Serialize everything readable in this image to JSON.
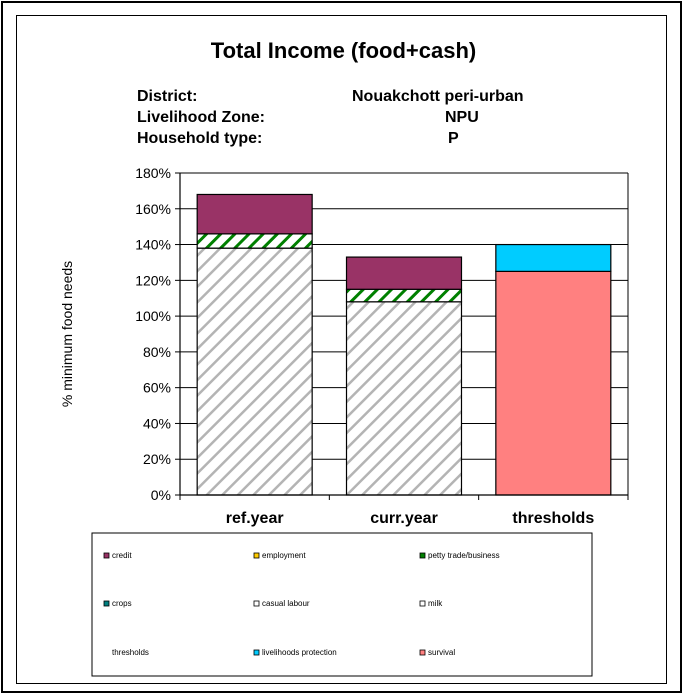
{
  "header": {
    "title": "Total Income (food+cash)",
    "district_label": "District:",
    "district_value": "Nouakchott peri-urban",
    "zone_label": "Livelihood Zone:",
    "zone_value": "NPU",
    "household_label": "Household type:",
    "household_value": "P"
  },
  "chart_data": {
    "type": "bar",
    "stacked": true,
    "title": "Total Income (food+cash)",
    "ylabel": "% minimum food needs",
    "xlabel": "",
    "ylim": [
      0,
      180
    ],
    "yticks": [
      "0%",
      "20%",
      "40%",
      "60%",
      "80%",
      "100%",
      "120%",
      "140%",
      "160%",
      "180%"
    ],
    "categories": [
      "ref.year",
      "curr.year",
      "thresholds"
    ],
    "grid": "horizontal",
    "series": [
      {
        "name": "casual labour",
        "color": "#c0c0c0",
        "pattern": "diagonal-hatch",
        "values": [
          138,
          108,
          0
        ]
      },
      {
        "name": "petty trade/business",
        "color": "#008000",
        "pattern": "diagonal-stripe",
        "values": [
          8,
          7,
          0
        ]
      },
      {
        "name": "credit",
        "color": "#993366",
        "values": [
          22,
          18,
          0
        ]
      },
      {
        "name": "survival",
        "color": "#ff8080",
        "values": [
          0,
          0,
          125
        ]
      },
      {
        "name": "livelihoods protection",
        "color": "#00ccff",
        "values": [
          0,
          0,
          15
        ]
      }
    ],
    "legend": {
      "position": "bottom",
      "entries": [
        {
          "name": "credit",
          "color": "#993366"
        },
        {
          "name": "employment",
          "color": "#ffcc00"
        },
        {
          "name": "petty trade/business",
          "color": "#008000"
        },
        {
          "name": "crops",
          "color": "#008080"
        },
        {
          "name": "casual labour",
          "color": "#ffffff"
        },
        {
          "name": "milk",
          "color": "#ffffff"
        },
        {
          "name": "thresholds",
          "color": "none"
        },
        {
          "name": "livelihoods protection",
          "color": "#00ccff"
        },
        {
          "name": "survival",
          "color": "#ff8080"
        }
      ]
    }
  }
}
